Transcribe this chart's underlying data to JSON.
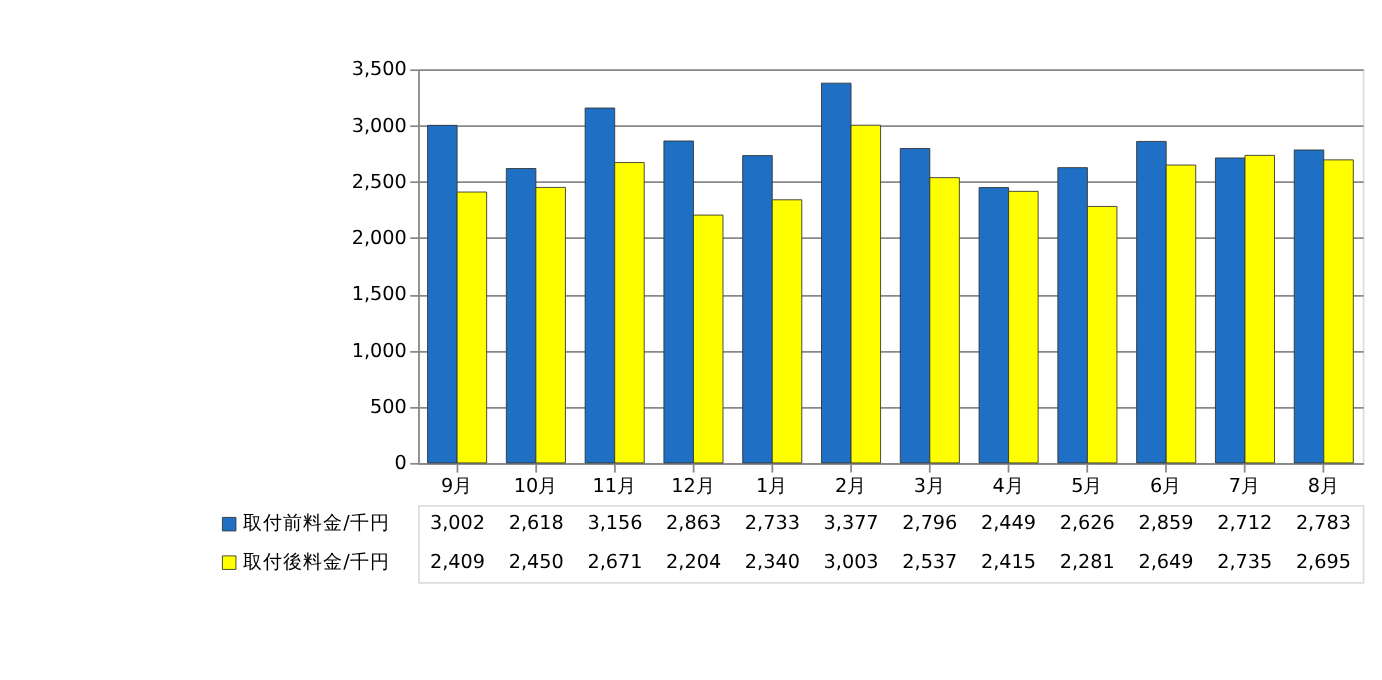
{
  "chart_data": {
    "type": "bar",
    "categories": [
      "9月",
      "10月",
      "11月",
      "12月",
      "1月",
      "2月",
      "3月",
      "4月",
      "5月",
      "6月",
      "7月",
      "8月"
    ],
    "series": [
      {
        "name": "取付前料金/千円",
        "color": "#1f6fc5",
        "values": [
          3002,
          2618,
          3156,
          2863,
          2733,
          3377,
          2796,
          2449,
          2626,
          2859,
          2712,
          2783
        ],
        "value_labels": [
          "3,002",
          "2,618",
          "3,156",
          "2,863",
          "2,733",
          "3,377",
          "2,796",
          "2,449",
          "2,626",
          "2,859",
          "2,712",
          "2,783"
        ]
      },
      {
        "name": "取付後料金/千円",
        "color": "#ffff00",
        "values": [
          2409,
          2450,
          2671,
          2204,
          2340,
          3003,
          2537,
          2415,
          2281,
          2649,
          2735,
          2695
        ],
        "value_labels": [
          "2,409",
          "2,450",
          "2,671",
          "2,204",
          "2,340",
          "3,003",
          "2,537",
          "2,415",
          "2,281",
          "2,649",
          "2,735",
          "2,695"
        ]
      }
    ],
    "ylim": [
      0,
      3500
    ],
    "yticks": [
      {
        "value": 0,
        "label": "0"
      },
      {
        "value": 500,
        "label": "500"
      },
      {
        "value": 1000,
        "label": "1,000"
      },
      {
        "value": 1500,
        "label": "1,500"
      },
      {
        "value": 2000,
        "label": "2,000"
      },
      {
        "value": 2500,
        "label": "2,500"
      },
      {
        "value": 3000,
        "label": "3,000"
      },
      {
        "value": 3500,
        "label": "3,500"
      }
    ],
    "grid": "y",
    "legend": "bottom left"
  }
}
